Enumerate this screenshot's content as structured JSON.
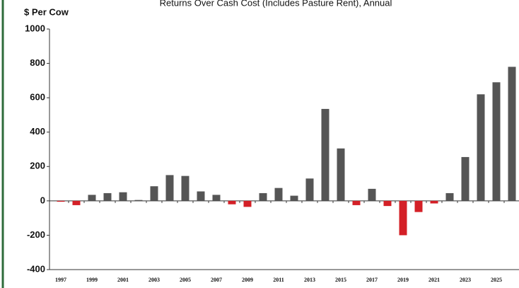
{
  "chart_data": {
    "type": "bar",
    "title": "Returns Over Cash Cost (Includes Pasture Rent), Annual",
    "y_label": "$ Per Cow",
    "categories": [
      "1997",
      null,
      "1999",
      null,
      "2001",
      null,
      "2003",
      null,
      "2005",
      null,
      "2007",
      null,
      "2009",
      null,
      "2011",
      null,
      "2013",
      null,
      "2015",
      null,
      "2017",
      null,
      "2019",
      null,
      "2021",
      null,
      "2023",
      null,
      "2025",
      null
    ],
    "values": [
      -5,
      -25,
      35,
      45,
      50,
      5,
      85,
      150,
      145,
      55,
      35,
      -20,
      -35,
      45,
      75,
      30,
      130,
      535,
      305,
      -25,
      70,
      -30,
      -200,
      -65,
      -15,
      45,
      255,
      620,
      690,
      780
    ],
    "colors": {
      "positive": "#555555",
      "negative": "#d42027"
    },
    "ylim": [
      -400,
      1000
    ],
    "yticks": [
      -400,
      -200,
      0,
      200,
      400,
      600,
      800,
      1000
    ],
    "grid": false
  }
}
